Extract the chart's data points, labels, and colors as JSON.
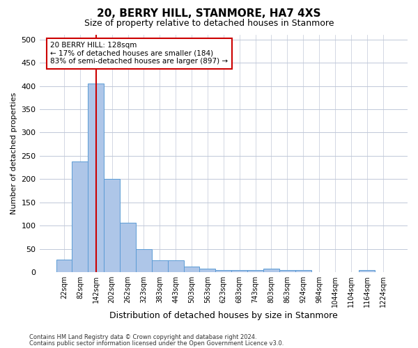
{
  "title": "20, BERRY HILL, STANMORE, HA7 4XS",
  "subtitle": "Size of property relative to detached houses in Stanmore",
  "xlabel": "Distribution of detached houses by size in Stanmore",
  "ylabel": "Number of detached properties",
  "bin_labels": [
    "22sqm",
    "82sqm",
    "142sqm",
    "202sqm",
    "262sqm",
    "323sqm",
    "383sqm",
    "443sqm",
    "503sqm",
    "563sqm",
    "623sqm",
    "683sqm",
    "743sqm",
    "803sqm",
    "863sqm",
    "924sqm",
    "984sqm",
    "1044sqm",
    "1104sqm",
    "1164sqm",
    "1224sqm"
  ],
  "bar_values": [
    27,
    238,
    405,
    200,
    106,
    49,
    25,
    25,
    12,
    7,
    5,
    5,
    5,
    7,
    5,
    5,
    0,
    0,
    0,
    5,
    0
  ],
  "bar_color": "#aec6e8",
  "bar_edgecolor": "#5b9bd5",
  "vline_x": 2,
  "vline_color": "#cc0000",
  "ylim": [
    0,
    510
  ],
  "yticks": [
    0,
    50,
    100,
    150,
    200,
    250,
    300,
    350,
    400,
    450,
    500
  ],
  "annotation_text": "20 BERRY HILL: 128sqm\n← 17% of detached houses are smaller (184)\n83% of semi-detached houses are larger (897) →",
  "annotation_box_edgecolor": "#cc0000",
  "footnote1": "Contains HM Land Registry data © Crown copyright and database right 2024.",
  "footnote2": "Contains public sector information licensed under the Open Government Licence v3.0.",
  "background_color": "#ffffff",
  "grid_color": "#c0c8d8"
}
